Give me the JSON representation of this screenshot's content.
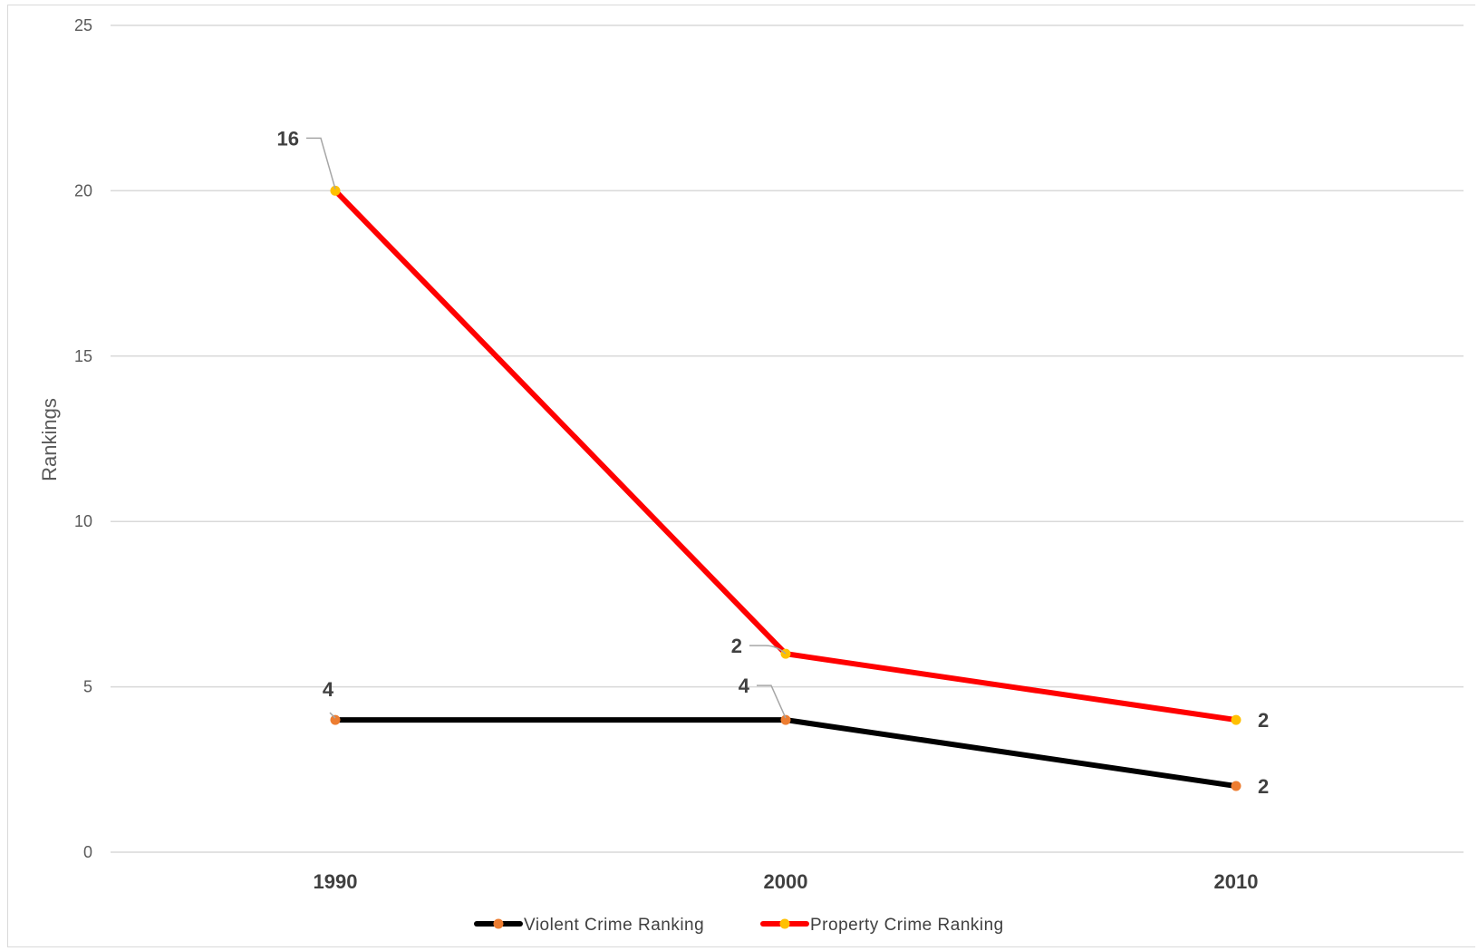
{
  "chart_data": {
    "type": "line",
    "title": "",
    "xlabel": "",
    "ylabel": "Rankings",
    "categories": [
      "1990",
      "2000",
      "2010"
    ],
    "ylim": [
      0,
      25
    ],
    "yticks": [
      0,
      5,
      10,
      15,
      20,
      25
    ],
    "grid": true,
    "legend_position": "bottom",
    "series": [
      {
        "name": "Violent Crime Ranking",
        "values": [
          4,
          4,
          2
        ],
        "data_labels": [
          "4",
          "4",
          "2"
        ],
        "line_color": "#000000",
        "marker_color": "#ed7d31"
      },
      {
        "name": "Property Crime Ranking",
        "values": [
          20,
          6,
          4
        ],
        "data_labels": [
          "16",
          "2",
          "2"
        ],
        "line_color": "#ff0000",
        "marker_color": "#ffc000"
      }
    ]
  }
}
